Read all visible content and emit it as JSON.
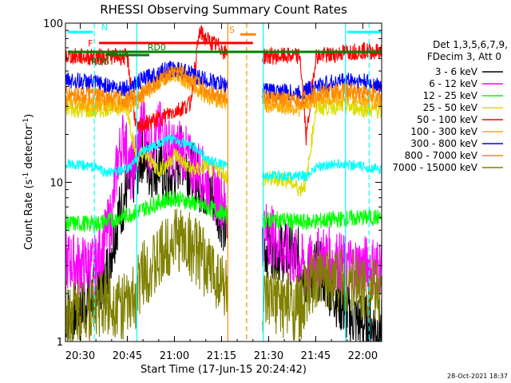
{
  "chart_data": {
    "type": "line",
    "title": "RHESSI Observing Summary Count Rates",
    "xlabel": "Start Time (17-Jun-15 20:24:42)",
    "ylabel_main": "Count Rate (s",
    "ylabel_sup1": "-1",
    "ylabel_mid": " detector",
    "ylabel_sup2": "-1",
    "ylabel_end": ")",
    "y_scale": "log",
    "ylim": [
      1,
      100
    ],
    "xlim_minutes": [
      -4.7,
      96
    ],
    "x_ticks": [
      {
        "t": 0,
        "label": "20:30"
      },
      {
        "t": 15,
        "label": "20:45"
      },
      {
        "t": 30,
        "label": "21:00"
      },
      {
        "t": 45,
        "label": "21:15"
      },
      {
        "t": 60,
        "label": "21:30"
      },
      {
        "t": 75,
        "label": "21:45"
      },
      {
        "t": 90,
        "label": "22:00"
      }
    ],
    "y_tick_labels": [
      {
        "v": 100,
        "label": "100"
      },
      {
        "v": 10,
        "label": "10"
      },
      {
        "v": 1,
        "label": "1"
      }
    ],
    "legend_title1": "Det 1,3,5,6,7,9,",
    "legend_title2": "FDecim 3, Att 0",
    "legend_placement": "right",
    "gaps_minutes": [
      [
        47,
        58
      ]
    ],
    "series": [
      {
        "name": "3 - 6 keV",
        "color": "#000000",
        "t": [
          -4,
          0,
          8,
          12,
          15,
          18,
          20,
          22,
          25,
          28,
          30,
          32,
          35,
          38,
          40,
          43,
          45,
          46,
          58,
          62,
          66,
          70,
          72,
          75,
          78,
          85,
          90,
          96
        ],
        "v": [
          1.5,
          1.6,
          2.5,
          6,
          9,
          12,
          16,
          12,
          13,
          10,
          11,
          15,
          12,
          10,
          9,
          8,
          6,
          5,
          4,
          3.8,
          3.6,
          3.3,
          2.5,
          3.0,
          2.5,
          1.5,
          1.3,
          1.2
        ]
      },
      {
        "name": "6 - 12 keV",
        "color": "#ff00ff",
        "t": [
          -4,
          0,
          5,
          10,
          12,
          14,
          16,
          18,
          20,
          22,
          24,
          26,
          28,
          30,
          32,
          35,
          38,
          40,
          42,
          45,
          46,
          58,
          62,
          66,
          70,
          72,
          75,
          78,
          85,
          90,
          96
        ],
        "v": [
          3.2,
          3.0,
          3.0,
          6,
          14,
          20,
          11,
          15,
          25,
          16,
          19,
          22,
          17,
          15,
          17,
          13,
          12,
          10,
          9,
          8,
          7,
          5.0,
          4.5,
          3.5,
          3.2,
          2.8,
          3.3,
          3.5,
          3.0,
          3.0,
          3.0
        ]
      },
      {
        "name": "12 - 25 keV",
        "color": "#00ff00",
        "t": [
          -4,
          5,
          10,
          15,
          20,
          25,
          30,
          35,
          40,
          45,
          46,
          58,
          65,
          70,
          75,
          80,
          85,
          90,
          96
        ],
        "v": [
          5.5,
          5.5,
          5.8,
          6.2,
          6.8,
          7.5,
          8.0,
          7.5,
          7.0,
          6.5,
          6.2,
          5.8,
          5.8,
          5.6,
          5.7,
          5.8,
          5.9,
          6.0,
          6.0
        ]
      },
      {
        "name": "25 - 50 keV",
        "color": "#dddd00",
        "t": [
          -4,
          5,
          10,
          15,
          18,
          20,
          22,
          25,
          28,
          30,
          32,
          35,
          38,
          40,
          42,
          45,
          46,
          58,
          62,
          66,
          70,
          72,
          75,
          80,
          85,
          90,
          96
        ],
        "v": [
          29,
          28,
          30,
          29,
          14,
          15,
          14,
          12,
          13,
          15,
          14,
          12,
          12,
          13,
          12,
          12,
          11,
          10.5,
          10.5,
          10.5,
          9,
          10,
          29,
          30,
          30,
          29,
          28
        ]
      },
      {
        "name": "50 - 100 keV",
        "color": "#ff0000",
        "t": [
          -4,
          5,
          10,
          15,
          18,
          20,
          25,
          30,
          35,
          38,
          40,
          42,
          45,
          46,
          58,
          65,
          70,
          72,
          75,
          80,
          85,
          90,
          96
        ],
        "v": [
          62,
          61,
          62,
          61,
          21,
          23,
          25,
          28,
          31,
          88,
          80,
          75,
          70,
          65,
          62,
          62,
          62,
          19,
          62,
          63,
          66,
          67,
          66
        ]
      },
      {
        "name": "100 - 300 keV",
        "color": "#ffaa00",
        "t": [
          -4,
          5,
          10,
          15,
          18,
          22,
          26,
          30,
          33,
          36,
          40,
          44,
          46,
          58,
          65,
          70,
          72,
          75,
          80,
          85,
          90,
          96
        ],
        "v": [
          32,
          31,
          31,
          30,
          32,
          38,
          44,
          48,
          45,
          40,
          35,
          33,
          32,
          31,
          30,
          29,
          31,
          33,
          34,
          34,
          33,
          32
        ]
      },
      {
        "name": "300 - 800 keV",
        "color": "#0000ff",
        "t": [
          -4,
          5,
          10,
          15,
          18,
          22,
          26,
          30,
          33,
          36,
          40,
          44,
          46,
          58,
          65,
          70,
          72,
          75,
          80,
          85,
          90,
          96
        ],
        "v": [
          44,
          42,
          40,
          39,
          42,
          46,
          50,
          52,
          50,
          47,
          44,
          42,
          41,
          38,
          37,
          36,
          38,
          40,
          42,
          44,
          43,
          40
        ]
      },
      {
        "name": "800 - 7000 keV",
        "color": "#ff8800",
        "t": [
          -4,
          5,
          10,
          15,
          18,
          22,
          26,
          30,
          33,
          36,
          40,
          44,
          46,
          58,
          65,
          70,
          72,
          75,
          80,
          85,
          90,
          96
        ],
        "v": [
          36,
          35,
          34,
          33,
          35,
          39,
          45,
          50,
          48,
          43,
          38,
          36,
          35,
          34,
          33,
          32,
          34,
          36,
          37,
          38,
          37,
          35
        ]
      },
      {
        "name": "7000 - 15000 keV",
        "color": "#808000",
        "t": [
          -4,
          0,
          5,
          10,
          15,
          18,
          20,
          24,
          28,
          30,
          32,
          35,
          38,
          40,
          42,
          45,
          46,
          58,
          62,
          66,
          70,
          72,
          75,
          80,
          85,
          90,
          96
        ],
        "v": [
          1.5,
          1.6,
          1.7,
          1.8,
          1.6,
          2.0,
          2.8,
          3.0,
          4.0,
          4.5,
          4.4,
          4.0,
          3.5,
          3.0,
          2.8,
          2.4,
          2.2,
          1.6,
          1.8,
          1.7,
          1.6,
          2.0,
          2.3,
          2.6,
          2.4,
          2.2,
          2.0
        ]
      }
    ],
    "cyan_curve": {
      "color": "#00ffff",
      "t": [
        -4,
        5,
        8,
        10,
        15,
        18,
        20,
        24,
        28,
        30,
        32,
        35,
        38,
        40,
        42,
        45,
        46,
        58,
        62,
        66,
        70,
        72,
        75,
        80,
        85,
        90,
        96
      ],
      "v": [
        13,
        12.5,
        11.5,
        11.5,
        12,
        14,
        16,
        17,
        18.5,
        19,
        18,
        17,
        16,
        14,
        13.5,
        13,
        12.8,
        11,
        11,
        11,
        11,
        10.8,
        12.5,
        13,
        13,
        12.5,
        12
      ]
    },
    "flag_bars": [
      {
        "label": "N",
        "color": "#00ffff",
        "segments": [
          [
            -4,
            4
          ]
        ],
        "level": 88
      },
      {
        "label": "",
        "color": "#00ffff",
        "segments": [
          [
            85,
            96
          ]
        ],
        "level": 88
      },
      {
        "label": "F",
        "color": "#ff0000",
        "segments": [
          [
            6,
            55
          ]
        ],
        "level": 75
      },
      {
        "label": "RD0",
        "color": "#008000",
        "segments": [
          [
            -4,
            96
          ]
        ],
        "level": 66
      },
      {
        "label": "RD6",
        "color": "#008000",
        "segments": [
          [
            8,
            22
          ]
        ],
        "level": 63
      },
      {
        "label": "S",
        "color": "#ff8800",
        "segments": [
          [
            51,
            56
          ]
        ],
        "level": 85
      }
    ],
    "vlines": [
      {
        "t": 4.5,
        "color": "#00ffff",
        "dash": true
      },
      {
        "t": 18,
        "color": "#00ffff",
        "dash": false
      },
      {
        "t": 47,
        "color": "#ff8800",
        "dash": false
      },
      {
        "t": 53,
        "color": "#ff8800",
        "dash": true
      },
      {
        "t": 58.3,
        "color": "#00ffff",
        "dash": false
      },
      {
        "t": 84.5,
        "color": "#00ffff",
        "dash": false
      },
      {
        "t": 92,
        "color": "#00ffff",
        "dash": true
      }
    ]
  },
  "footer_timestamp": "28-Oct-2021 18:37"
}
